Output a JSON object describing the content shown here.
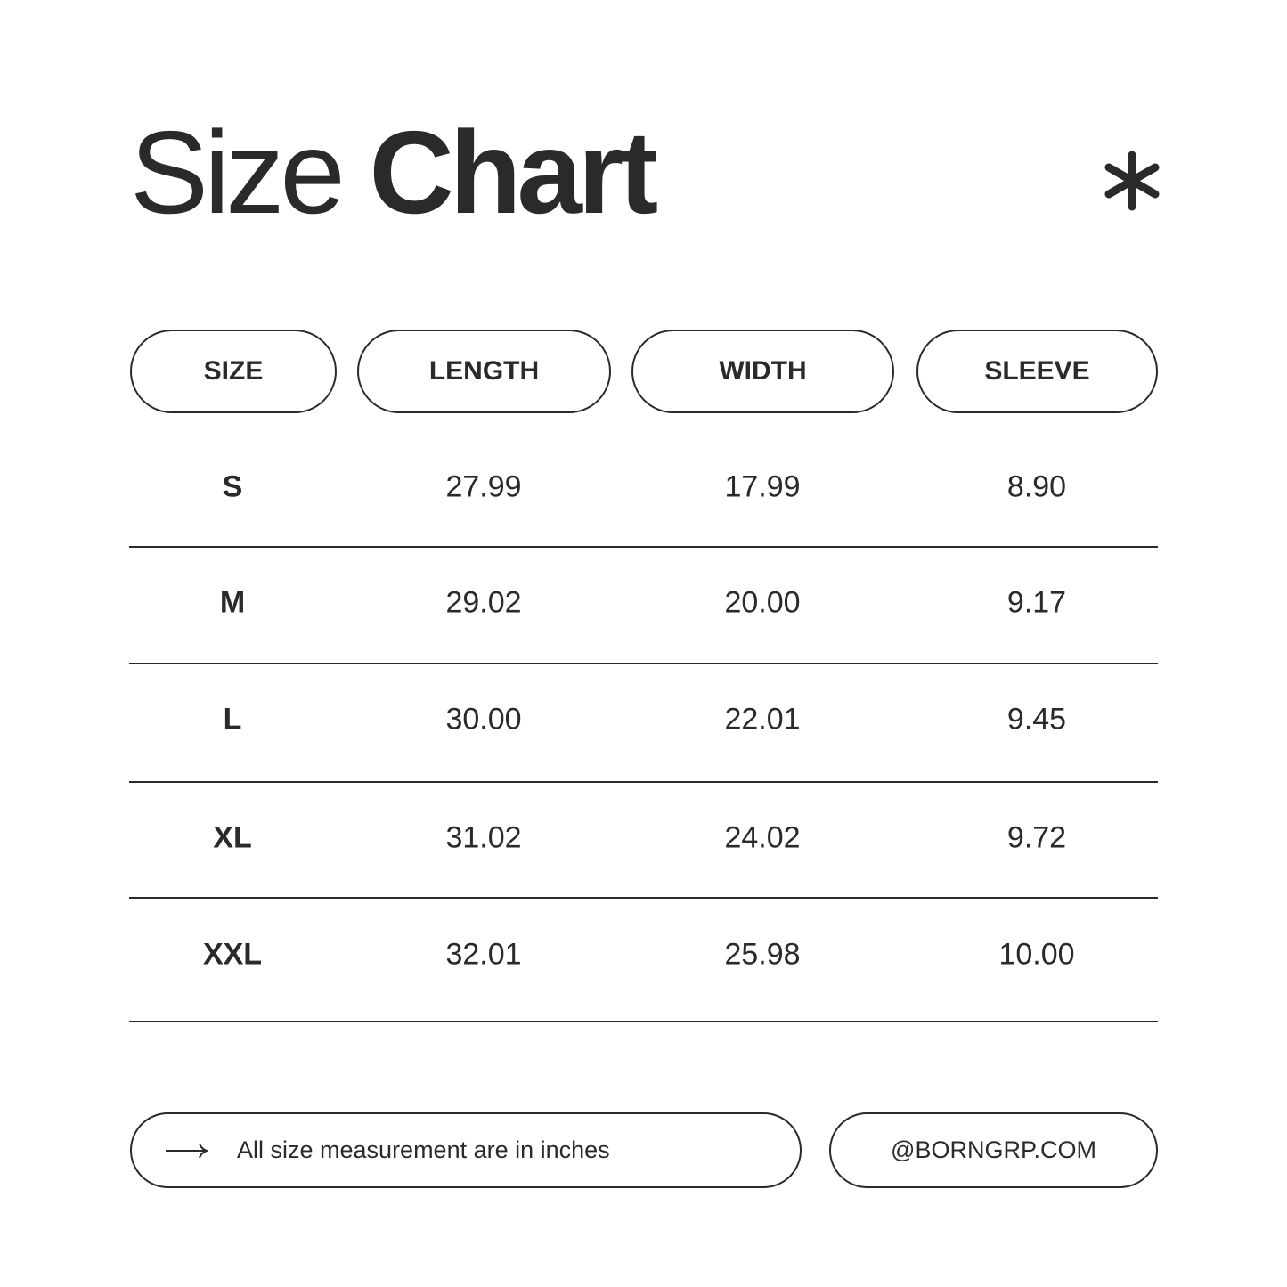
{
  "title": {
    "light": "Size",
    "bold": "Chart"
  },
  "decoration_icon": "asterisk-icon",
  "columns": [
    "SIZE",
    "LENGTH",
    "WIDTH",
    "SLEEVE"
  ],
  "rows": [
    [
      "S",
      "27.99",
      "17.99",
      "8.90"
    ],
    [
      "M",
      "29.02",
      "20.00",
      "9.17"
    ],
    [
      "L",
      "30.00",
      "22.01",
      "9.45"
    ],
    [
      "XL",
      "31.02",
      "24.02",
      "9.72"
    ],
    [
      "XXL",
      "32.01",
      "25.98",
      "10.00"
    ]
  ],
  "footer": {
    "note_icon": "arrow-right-icon",
    "note": "All size measurement are in inches",
    "website": "@BORNGRP.COM"
  },
  "colors": {
    "text": "#2a2a2a",
    "background": "#ffffff"
  }
}
